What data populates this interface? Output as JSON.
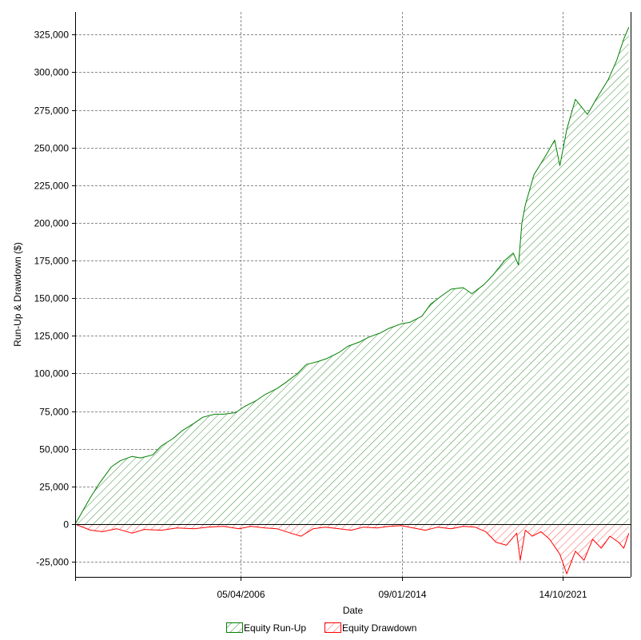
{
  "chart_data": {
    "type": "area",
    "title": "",
    "xlabel": "Date",
    "ylabel": "Run-Up & Drawdown ($)",
    "x_ticks": [
      "05/04/2006",
      "09/01/2014",
      "14/10/2021"
    ],
    "y_ticks": [
      "325,000",
      "300,000",
      "275,000",
      "250,000",
      "225,000",
      "200,000",
      "175,000",
      "150,000",
      "125,000",
      "100,000",
      "75,000",
      "50,000",
      "25,000",
      "0",
      "-25,000"
    ],
    "ylim": [
      -35000,
      340000
    ],
    "xlim": [
      "1998-04-01",
      "2025-02-01"
    ],
    "grid": true,
    "legend_position": "bottom",
    "series": [
      {
        "name": "Equity Run-Up",
        "color": "#008000",
        "x": [
          "1998-04-01",
          "1998-07-01",
          "1999-01-01",
          "1999-06-01",
          "2000-01-01",
          "2000-06-01",
          "2001-01-01",
          "2001-06-01",
          "2002-01-01",
          "2002-06-01",
          "2003-01-01",
          "2003-06-01",
          "2004-01-01",
          "2004-06-01",
          "2005-01-01",
          "2005-06-01",
          "2006-01-01",
          "2006-06-01",
          "2007-01-01",
          "2007-06-01",
          "2008-01-01",
          "2008-06-01",
          "2009-01-01",
          "2009-06-01",
          "2010-01-01",
          "2010-06-01",
          "2011-01-01",
          "2011-06-01",
          "2012-01-01",
          "2012-06-01",
          "2013-01-01",
          "2013-06-01",
          "2014-01-01",
          "2014-06-01",
          "2015-01-01",
          "2015-06-01",
          "2016-01-01",
          "2016-06-01",
          "2017-01-01",
          "2017-06-01",
          "2018-01-01",
          "2018-06-01",
          "2019-01-01",
          "2019-06-01",
          "2019-09-01",
          "2019-11-01",
          "2020-01-01",
          "2020-06-01",
          "2021-01-01",
          "2021-06-01",
          "2021-09-01",
          "2022-01-01",
          "2022-06-01",
          "2023-01-01",
          "2023-06-01",
          "2024-01-01",
          "2024-06-01",
          "2024-10-01",
          "2025-01-01"
        ],
        "values": [
          0,
          6000,
          18000,
          27000,
          38000,
          42000,
          45000,
          44000,
          46000,
          52000,
          57000,
          62000,
          67000,
          71000,
          73000,
          73000,
          74000,
          78000,
          82000,
          86000,
          90000,
          94000,
          100000,
          106000,
          108000,
          110000,
          114000,
          118000,
          121000,
          124000,
          127000,
          130000,
          133000,
          134000,
          138000,
          146000,
          152000,
          156000,
          157000,
          153000,
          159000,
          165000,
          175000,
          180000,
          172000,
          200000,
          212000,
          232000,
          245000,
          255000,
          238000,
          262000,
          282000,
          272000,
          282000,
          295000,
          308000,
          322000,
          330000
        ]
      },
      {
        "name": "Equity Drawdown",
        "color": "#ff0000",
        "x": [
          "1998-04-01",
          "1999-01-01",
          "1999-08-01",
          "2000-04-01",
          "2001-01-01",
          "2001-08-01",
          "2002-06-01",
          "2003-03-01",
          "2004-01-01",
          "2004-09-01",
          "2005-06-01",
          "2006-03-01",
          "2006-10-01",
          "2007-06-01",
          "2008-01-01",
          "2008-09-01",
          "2009-03-01",
          "2009-10-01",
          "2010-05-01",
          "2011-01-01",
          "2011-08-01",
          "2012-03-01",
          "2012-11-01",
          "2013-06-01",
          "2014-01-01",
          "2014-08-01",
          "2015-03-01",
          "2015-10-01",
          "2016-06-01",
          "2017-01-01",
          "2017-08-01",
          "2018-02-01",
          "2018-08-01",
          "2019-02-01",
          "2019-08-01",
          "2019-10-01",
          "2020-01-01",
          "2020-05-01",
          "2020-10-01",
          "2021-03-01",
          "2021-09-01",
          "2022-01-01",
          "2022-06-01",
          "2022-11-01",
          "2023-04-01",
          "2023-09-01",
          "2024-02-01",
          "2024-07-01",
          "2024-10-01",
          "2025-01-01"
        ],
        "values": [
          0,
          -4000,
          -5000,
          -3000,
          -6000,
          -3500,
          -4000,
          -2500,
          -3000,
          -2000,
          -1500,
          -3000,
          -1500,
          -2500,
          -3000,
          -6000,
          -8000,
          -3000,
          -2000,
          -3000,
          -4000,
          -2000,
          -2500,
          -1500,
          -1000,
          -2500,
          -4000,
          -2000,
          -3000,
          -1500,
          -2000,
          -5000,
          -12000,
          -14000,
          -6000,
          -24000,
          -4000,
          -8000,
          -5000,
          -10000,
          -20000,
          -33000,
          -18000,
          -24000,
          -10000,
          -16000,
          -8000,
          -12000,
          -16000,
          -6000
        ]
      }
    ]
  }
}
